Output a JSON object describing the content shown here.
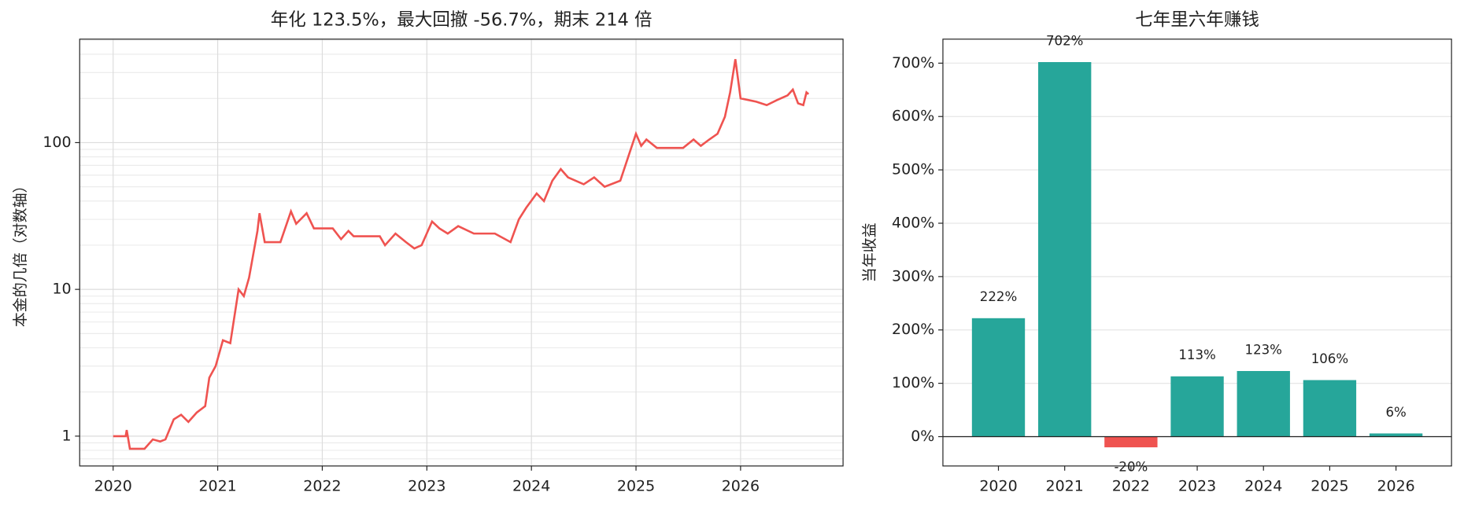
{
  "chart_data": [
    {
      "type": "line",
      "title": "年化 123.5%，最大回撤 -56.7%，期末 214 倍",
      "y_label": "本金的几倍（对数轴）",
      "log_y": true,
      "grid": true,
      "color": "#ef5350",
      "x": [
        2020.0,
        2020.12,
        2020.13,
        2020.16,
        2020.3,
        2020.38,
        2020.45,
        2020.5,
        2020.58,
        2020.65,
        2020.72,
        2020.8,
        2020.88,
        2020.92,
        2020.98,
        2021.05,
        2021.12,
        2021.2,
        2021.25,
        2021.3,
        2021.38,
        2021.4,
        2021.45,
        2021.6,
        2021.7,
        2021.75,
        2021.85,
        2021.92,
        2022.1,
        2022.18,
        2022.25,
        2022.3,
        2022.55,
        2022.6,
        2022.7,
        2022.8,
        2022.88,
        2022.95,
        2023.05,
        2023.12,
        2023.2,
        2023.3,
        2023.45,
        2023.65,
        2023.8,
        2023.88,
        2023.95,
        2024.05,
        2024.12,
        2024.2,
        2024.28,
        2024.35,
        2024.5,
        2024.6,
        2024.7,
        2024.85,
        2024.95,
        2025.0,
        2025.05,
        2025.1,
        2025.2,
        2025.45,
        2025.55,
        2025.62,
        2025.7,
        2025.78,
        2025.85,
        2025.9,
        2025.95,
        2026.0,
        2026.15,
        2026.25,
        2026.35,
        2026.45,
        2026.5,
        2026.55,
        2026.6,
        2026.63,
        2026.65
      ],
      "values": [
        1.0,
        1.0,
        1.1,
        0.82,
        0.82,
        0.95,
        0.92,
        0.95,
        1.3,
        1.4,
        1.25,
        1.45,
        1.6,
        2.5,
        3.0,
        4.5,
        4.3,
        10,
        9,
        12,
        25,
        33,
        21,
        21,
        34,
        28,
        33,
        26,
        26,
        22,
        25,
        23,
        23,
        20,
        24,
        21,
        19,
        20,
        29,
        26,
        24,
        27,
        24,
        24,
        21,
        30,
        36,
        45,
        40,
        55,
        66,
        58,
        52,
        58,
        50,
        55,
        90,
        115,
        95,
        105,
        92,
        92,
        105,
        95,
        105,
        115,
        150,
        220,
        370,
        200,
        190,
        180,
        195,
        210,
        230,
        185,
        180,
        220,
        214
      ],
      "xlim": [
        2019.68,
        2026.98
      ],
      "xticks": [
        2020,
        2021,
        2022,
        2023,
        2024,
        2025,
        2026
      ],
      "ylim": [
        0.626,
        507
      ],
      "yticks": [
        1,
        10,
        100
      ]
    },
    {
      "type": "bar",
      "title": "七年里六年赚钱",
      "y_label": "当年收益",
      "grid": true,
      "categories": [
        "2020",
        "2021",
        "2022",
        "2023",
        "2024",
        "2025",
        "2026"
      ],
      "values": [
        222,
        702,
        -20,
        113,
        123,
        106,
        6
      ],
      "value_labels": [
        "222%",
        "702%",
        "-20%",
        "113%",
        "123%",
        "106%",
        "6%"
      ],
      "colors": [
        "#26a69a",
        "#26a69a",
        "#ef5350",
        "#26a69a",
        "#26a69a",
        "#26a69a",
        "#26a69a"
      ],
      "ylim": [
        -55,
        745
      ],
      "yticks": [
        {
          "value": 0,
          "label": "0%"
        },
        {
          "value": 100,
          "label": "100%"
        },
        {
          "value": 200,
          "label": "200%"
        },
        {
          "value": 300,
          "label": "300%"
        },
        {
          "value": 400,
          "label": "400%"
        },
        {
          "value": 500,
          "label": "500%"
        },
        {
          "value": 600,
          "label": "600%"
        },
        {
          "value": 700,
          "label": "700%"
        }
      ]
    }
  ]
}
